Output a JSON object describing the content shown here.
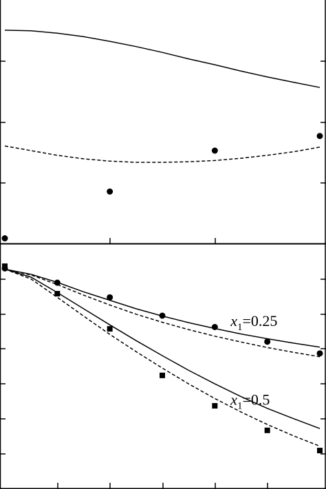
{
  "chart_data": [
    {
      "type": "line",
      "panel": "top",
      "title": "",
      "xlabel": "",
      "ylabel": "",
      "xlim": [
        0,
        6
      ],
      "ylim": [
        0,
        4
      ],
      "grid": false,
      "legend": "none",
      "series": [
        {
          "style": "solid",
          "marker": "none",
          "x": [
            0,
            0.5,
            1,
            1.5,
            2,
            2.5,
            3,
            3.5,
            4,
            4.5,
            5,
            5.5,
            6
          ],
          "y": [
            3.66,
            3.65,
            3.61,
            3.55,
            3.47,
            3.38,
            3.28,
            3.17,
            3.07,
            2.96,
            2.86,
            2.77,
            2.68
          ]
        },
        {
          "style": "dashed",
          "marker": "none",
          "x": [
            0,
            0.5,
            1,
            1.5,
            2,
            2.5,
            3,
            3.5,
            4,
            4.5,
            5,
            5.5,
            6
          ],
          "y": [
            1.68,
            1.6,
            1.52,
            1.46,
            1.42,
            1.4,
            1.4,
            1.41,
            1.43,
            1.47,
            1.52,
            1.58,
            1.66
          ]
        },
        {
          "style": "none",
          "marker": "circle",
          "x": [
            0,
            2,
            4,
            6
          ],
          "y": [
            0.1,
            0.9,
            1.6,
            1.85
          ]
        }
      ]
    },
    {
      "type": "line",
      "panel": "bottom",
      "title": "",
      "xlabel": "",
      "ylabel": "",
      "xlim": [
        0,
        6
      ],
      "ylim": [
        0,
        6.4
      ],
      "grid": false,
      "legend": "none",
      "annotations": [
        {
          "var": "x",
          "sub": "1",
          "text": "=0.25",
          "x": 4.3,
          "y": 4.45
        },
        {
          "var": "x",
          "sub": "1",
          "text": "=0.5",
          "x": 4.3,
          "y": 2.3
        }
      ],
      "series": [
        {
          "style": "solid",
          "marker": "none",
          "x": [
            0,
            0.5,
            1,
            1.5,
            2,
            2.5,
            3,
            3.5,
            4,
            4.5,
            5,
            5.5,
            6
          ],
          "y": [
            6.0,
            5.86,
            5.64,
            5.38,
            5.15,
            4.92,
            4.72,
            4.54,
            4.38,
            4.23,
            4.1,
            3.98,
            3.87
          ]
        },
        {
          "style": "dashed",
          "marker": "none",
          "x": [
            0,
            0.5,
            1,
            1.5,
            2,
            2.5,
            3,
            3.5,
            4,
            4.5,
            5,
            5.5,
            6
          ],
          "y": [
            6.0,
            5.84,
            5.58,
            5.29,
            5.02,
            4.77,
            4.55,
            4.35,
            4.17,
            4.01,
            3.86,
            3.73,
            3.61
          ]
        },
        {
          "style": "none",
          "marker": "circle",
          "x": [
            0,
            1,
            2,
            3,
            4,
            5,
            6
          ],
          "y": [
            6.02,
            5.63,
            5.23,
            4.73,
            4.42,
            4.02,
            3.7
          ]
        },
        {
          "style": "solid",
          "marker": "none",
          "x": [
            0,
            0.5,
            1,
            1.5,
            2,
            2.5,
            3,
            3.5,
            4,
            4.5,
            5,
            5.5,
            6
          ],
          "y": [
            6.0,
            5.78,
            5.36,
            4.92,
            4.48,
            4.05,
            3.64,
            3.24,
            2.87,
            2.52,
            2.2,
            1.92,
            1.65
          ]
        },
        {
          "style": "dashed",
          "marker": "none",
          "x": [
            0,
            0.5,
            1,
            1.5,
            2,
            2.5,
            3,
            3.5,
            4,
            4.5,
            5,
            5.5,
            6
          ],
          "y": [
            6.0,
            5.73,
            5.23,
            4.72,
            4.22,
            3.75,
            3.3,
            2.87,
            2.47,
            2.1,
            1.76,
            1.45,
            1.17
          ]
        },
        {
          "style": "none",
          "marker": "square",
          "x": [
            0,
            1,
            2,
            3,
            4,
            5,
            6
          ],
          "y": [
            6.08,
            5.33,
            4.37,
            3.1,
            2.27,
            1.6,
            1.05
          ]
        }
      ]
    }
  ]
}
